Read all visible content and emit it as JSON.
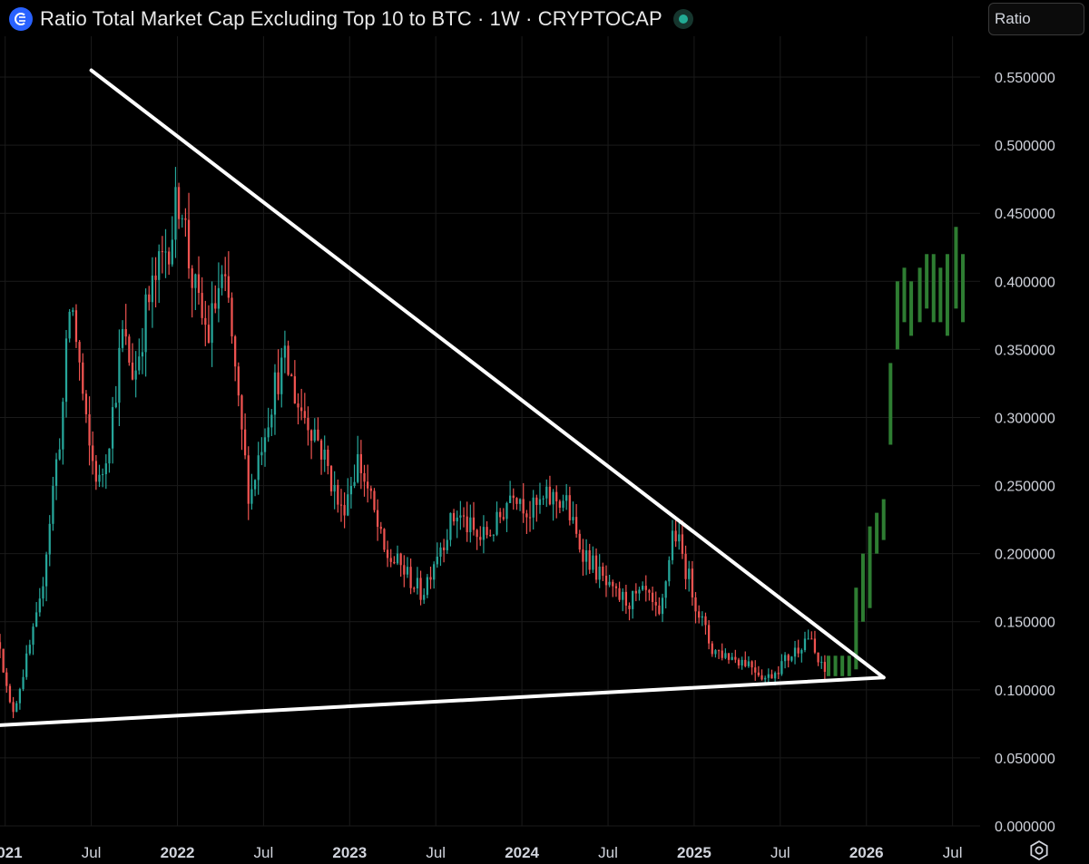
{
  "header": {
    "title": "Ratio Total Market Cap Excluding Top 10 to BTC · 1W · CRYPTOCAP",
    "logo_icon": "cryptocap-logo-icon",
    "status_icon": "market-open-dot-icon"
  },
  "scale_input": {
    "value": "Ratio"
  },
  "settings_icon": "gear-icon",
  "colors": {
    "up": "#26a69a",
    "down": "#ef5350",
    "projection": "#2e7d32",
    "trendline": "#ffffff",
    "grid": "#1a1a1a"
  },
  "chart_data": {
    "type": "candlestick",
    "title": "Ratio Total Market Cap Excluding Top 10 to BTC · 1W · CRYPTOCAP",
    "interval": "1W",
    "y_axis": {
      "min": 0,
      "max": 0.58,
      "ticks": [
        "0.000000",
        "0.050000",
        "0.100000",
        "0.150000",
        "0.200000",
        "0.250000",
        "0.300000",
        "0.350000",
        "0.400000",
        "0.450000",
        "0.500000",
        "0.550000"
      ]
    },
    "x_axis": {
      "range": [
        2020.97,
        2026.66
      ],
      "ticks": [
        {
          "label": "2021",
          "t": 2021.0,
          "major": true
        },
        {
          "label": "Jul",
          "t": 2021.5,
          "major": false
        },
        {
          "label": "2022",
          "t": 2022.0,
          "major": true
        },
        {
          "label": "Jul",
          "t": 2022.5,
          "major": false
        },
        {
          "label": "2023",
          "t": 2023.0,
          "major": true
        },
        {
          "label": "Jul",
          "t": 2023.5,
          "major": false
        },
        {
          "label": "2024",
          "t": 2024.0,
          "major": true
        },
        {
          "label": "Jul",
          "t": 2024.5,
          "major": false
        },
        {
          "label": "2025",
          "t": 2025.0,
          "major": true
        },
        {
          "label": "Jul",
          "t": 2025.5,
          "major": false
        },
        {
          "label": "2026",
          "t": 2026.0,
          "major": true
        },
        {
          "label": "Jul",
          "t": 2026.5,
          "major": false
        }
      ]
    },
    "series_path": [
      [
        2020.97,
        0.135
      ],
      [
        2021.02,
        0.09
      ],
      [
        2021.05,
        0.085
      ],
      [
        2021.12,
        0.12
      ],
      [
        2021.2,
        0.16
      ],
      [
        2021.28,
        0.25
      ],
      [
        2021.33,
        0.3
      ],
      [
        2021.38,
        0.39
      ],
      [
        2021.43,
        0.34
      ],
      [
        2021.48,
        0.28
      ],
      [
        2021.55,
        0.25
      ],
      [
        2021.62,
        0.3
      ],
      [
        2021.68,
        0.36
      ],
      [
        2021.75,
        0.33
      ],
      [
        2021.82,
        0.38
      ],
      [
        2021.9,
        0.41
      ],
      [
        2021.97,
        0.44
      ],
      [
        2022.02,
        0.47
      ],
      [
        2022.06,
        0.42
      ],
      [
        2022.12,
        0.38
      ],
      [
        2022.18,
        0.36
      ],
      [
        2022.25,
        0.4
      ],
      [
        2022.3,
        0.38
      ],
      [
        2022.35,
        0.31
      ],
      [
        2022.42,
        0.24
      ],
      [
        2022.5,
        0.29
      ],
      [
        2022.58,
        0.33
      ],
      [
        2022.63,
        0.34
      ],
      [
        2022.7,
        0.31
      ],
      [
        2022.8,
        0.29
      ],
      [
        2022.88,
        0.26
      ],
      [
        2022.95,
        0.23
      ],
      [
        2023.05,
        0.27
      ],
      [
        2023.12,
        0.24
      ],
      [
        2023.2,
        0.2
      ],
      [
        2023.3,
        0.19
      ],
      [
        2023.42,
        0.17
      ],
      [
        2023.5,
        0.2
      ],
      [
        2023.62,
        0.23
      ],
      [
        2023.75,
        0.21
      ],
      [
        2023.85,
        0.22
      ],
      [
        2023.95,
        0.25
      ],
      [
        2024.05,
        0.23
      ],
      [
        2024.15,
        0.24
      ],
      [
        2024.25,
        0.24
      ],
      [
        2024.32,
        0.21
      ],
      [
        2024.42,
        0.19
      ],
      [
        2024.52,
        0.17
      ],
      [
        2024.62,
        0.165
      ],
      [
        2024.72,
        0.17
      ],
      [
        2024.8,
        0.15
      ],
      [
        2024.88,
        0.22
      ],
      [
        2024.95,
        0.19
      ],
      [
        2025.02,
        0.16
      ],
      [
        2025.1,
        0.13
      ],
      [
        2025.2,
        0.125
      ],
      [
        2025.32,
        0.12
      ],
      [
        2025.42,
        0.108
      ],
      [
        2025.5,
        0.118
      ],
      [
        2025.58,
        0.128
      ],
      [
        2025.66,
        0.14
      ],
      [
        2025.72,
        0.12
      ],
      [
        2025.76,
        0.112
      ]
    ],
    "trendlines": [
      {
        "name": "descending-resistance",
        "from": [
          2021.5,
          0.555
        ],
        "to": [
          2026.1,
          0.109
        ]
      },
      {
        "name": "ascending-support",
        "from": [
          2020.97,
          0.074
        ],
        "to": [
          2026.1,
          0.109
        ]
      }
    ],
    "projection_bars": [
      {
        "t": 2025.78,
        "low": 0.11,
        "high": 0.125
      },
      {
        "t": 2025.82,
        "low": 0.11,
        "high": 0.125
      },
      {
        "t": 2025.86,
        "low": 0.11,
        "high": 0.125
      },
      {
        "t": 2025.9,
        "low": 0.11,
        "high": 0.125
      },
      {
        "t": 2025.94,
        "low": 0.115,
        "high": 0.175
      },
      {
        "t": 2025.98,
        "low": 0.15,
        "high": 0.2
      },
      {
        "t": 2026.02,
        "low": 0.16,
        "high": 0.22
      },
      {
        "t": 2026.06,
        "low": 0.2,
        "high": 0.23
      },
      {
        "t": 2026.1,
        "low": 0.21,
        "high": 0.24
      },
      {
        "t": 2026.14,
        "low": 0.28,
        "high": 0.34
      },
      {
        "t": 2026.18,
        "low": 0.35,
        "high": 0.4
      },
      {
        "t": 2026.22,
        "low": 0.37,
        "high": 0.41
      },
      {
        "t": 2026.26,
        "low": 0.36,
        "high": 0.4
      },
      {
        "t": 2026.31,
        "low": 0.37,
        "high": 0.41
      },
      {
        "t": 2026.35,
        "low": 0.38,
        "high": 0.42
      },
      {
        "t": 2026.39,
        "low": 0.37,
        "high": 0.42
      },
      {
        "t": 2026.43,
        "low": 0.37,
        "high": 0.41
      },
      {
        "t": 2026.47,
        "low": 0.36,
        "high": 0.42
      },
      {
        "t": 2026.52,
        "low": 0.38,
        "high": 0.44
      },
      {
        "t": 2026.56,
        "low": 0.37,
        "high": 0.42
      }
    ]
  }
}
